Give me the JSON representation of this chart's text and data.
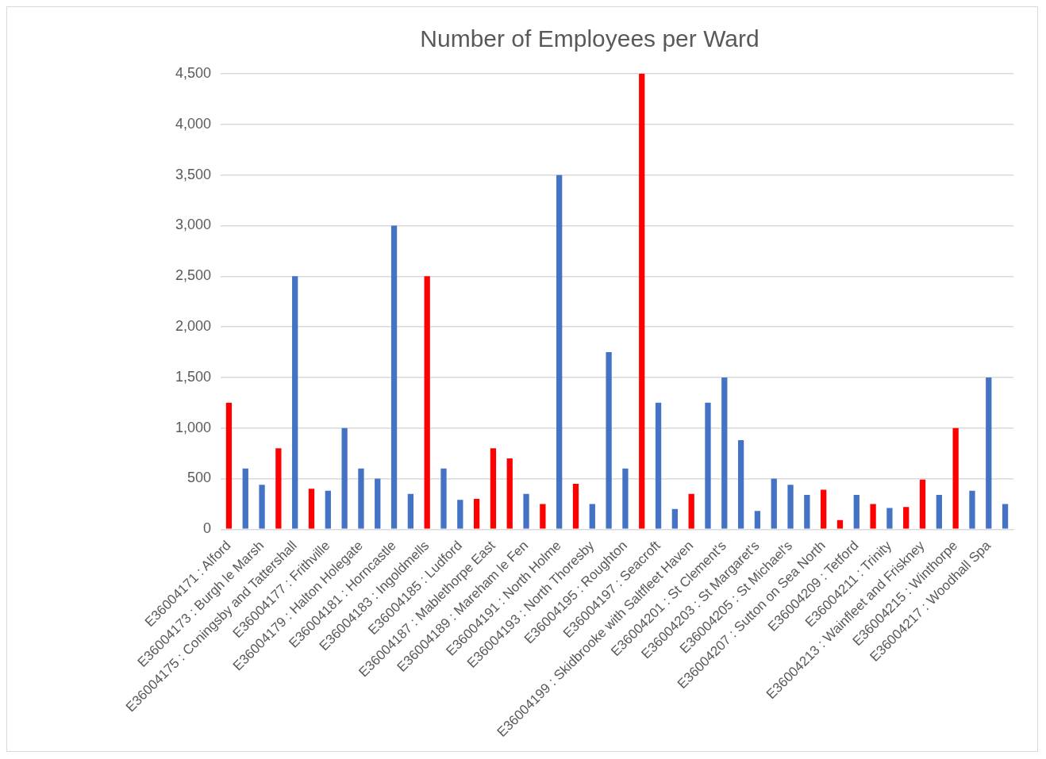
{
  "chart_data": {
    "type": "bar",
    "title": "Number of Employees per Ward",
    "categories": [
      "E36004171 : Alford",
      null,
      "E36004173 : Burgh le Marsh",
      null,
      "E36004175 : Coningsby and Tattershall",
      null,
      "E36004177 : Frithville",
      null,
      "E36004179 : Halton Holegate",
      null,
      "E36004181 : Horncastle",
      null,
      "E36004183 : Ingoldmells",
      null,
      "E36004185 : Ludford",
      null,
      "E36004187 : Mablethorpe East",
      null,
      "E36004189 : Mareham le Fen",
      null,
      "E36004191 : North Holme",
      null,
      "E36004193 : North Thoresby",
      null,
      "E36004195 : Roughton",
      null,
      "E36004197 : Seacroft",
      null,
      "E36004199 : Skidbrooke with Saltfleet Haven",
      null,
      "E36004201 : St Clement's",
      null,
      "E36004203 : St Margaret's",
      null,
      "E36004205 : St Michael's",
      null,
      "E36004207 : Sutton on Sea North",
      null,
      "E36004209 : Tetford",
      null,
      "E36004211 : Trinity",
      null,
      "E36004213 : Wainfleet and Friskney",
      null,
      "E36004215 : Winthorpe",
      null,
      "E36004217 : Woodhall Spa",
      null
    ],
    "values": [
      1250,
      600,
      440,
      800,
      2500,
      400,
      380,
      1000,
      600,
      500,
      3000,
      350,
      2500,
      600,
      290,
      300,
      800,
      700,
      350,
      250,
      3500,
      450,
      250,
      1750,
      600,
      4500,
      1250,
      200,
      350,
      1250,
      1500,
      880,
      180,
      500,
      440,
      340,
      390,
      90,
      340,
      250,
      210,
      220,
      490,
      340,
      1000,
      380,
      1500,
      250
    ],
    "colors": [
      "#ff0000",
      "#4472c4",
      "#4472c4",
      "#ff0000",
      "#4472c4",
      "#ff0000",
      "#4472c4",
      "#4472c4",
      "#4472c4",
      "#4472c4",
      "#4472c4",
      "#4472c4",
      "#ff0000",
      "#4472c4",
      "#4472c4",
      "#ff0000",
      "#ff0000",
      "#ff0000",
      "#4472c4",
      "#ff0000",
      "#4472c4",
      "#ff0000",
      "#4472c4",
      "#4472c4",
      "#4472c4",
      "#ff0000",
      "#4472c4",
      "#4472c4",
      "#ff0000",
      "#4472c4",
      "#4472c4",
      "#4472c4",
      "#4472c4",
      "#4472c4",
      "#4472c4",
      "#4472c4",
      "#ff0000",
      "#ff0000",
      "#4472c4",
      "#ff0000",
      "#4472c4",
      "#ff0000",
      "#ff0000",
      "#4472c4",
      "#ff0000",
      "#4472c4",
      "#4472c4",
      "#4472c4"
    ],
    "ylim": [
      0,
      4500
    ],
    "yticks": [
      0,
      {
        "value": 500,
        "label": "500"
      },
      {
        "value": 1000,
        "label": "1,000"
      },
      {
        "value": 1500,
        "label": "1,500"
      },
      {
        "value": 2000,
        "label": "2,000"
      },
      {
        "value": 2500,
        "label": "2,500"
      },
      {
        "value": 3000,
        "label": "3,000"
      },
      {
        "value": 3500,
        "label": "3,500"
      },
      {
        "value": 4000,
        "label": "4,000"
      },
      {
        "value": 4500,
        "label": "4,500"
      }
    ],
    "grid": "y",
    "legend": false
  }
}
